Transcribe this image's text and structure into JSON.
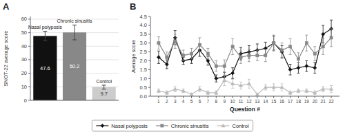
{
  "chart_data": [
    {
      "type": "bar",
      "title": "A",
      "categories": [
        "Nasal polyposis",
        "Chronic sinusitis",
        "Control"
      ],
      "values": [
        47.6,
        50.2,
        9.7
      ],
      "errors": [
        3.5,
        5.5,
        1.5
      ],
      "colors": [
        "#111111",
        "#888888",
        "#cccccc"
      ],
      "y_label": "SNOT-22 average score",
      "ylim": [
        0,
        62
      ],
      "yticks": [
        0,
        10,
        20,
        30,
        40,
        50,
        60
      ],
      "grid": true,
      "data_labels": true
    },
    {
      "type": "line",
      "title": "B",
      "x_label": "Question #",
      "y_label": "Average score",
      "x": [
        1,
        2,
        3,
        4,
        5,
        6,
        7,
        8,
        9,
        10,
        11,
        12,
        13,
        14,
        15,
        16,
        17,
        18,
        19,
        20,
        21,
        22
      ],
      "xlim": [
        0,
        23
      ],
      "xticks": [
        1,
        2,
        3,
        4,
        5,
        6,
        7,
        8,
        9,
        10,
        11,
        12,
        13,
        14,
        15,
        16,
        17,
        18,
        19,
        20,
        21,
        22
      ],
      "ylim": [
        0,
        4.5
      ],
      "yticks": [
        {
          "value": 0,
          "label": "0.0"
        },
        {
          "value": 0.5,
          "label": "0.5"
        },
        {
          "value": 1.0,
          "label": "1.0"
        },
        {
          "value": 1.5,
          "label": "1.5"
        },
        {
          "value": 2.0,
          "label": "2.0"
        },
        {
          "value": 2.5,
          "label": "2.5"
        },
        {
          "value": 3.0,
          "label": "3.0"
        },
        {
          "value": 3.5,
          "label": "3.5"
        },
        {
          "value": 4.0,
          "label": "4.0"
        },
        {
          "value": 4.5,
          "label": "4.5"
        }
      ],
      "grid": false,
      "legend": "bottom",
      "series": [
        {
          "name": "Nasal polyposis",
          "color": "#111111",
          "marker": "diamond",
          "values": [
            2.2,
            1.8,
            3.3,
            2.0,
            2.1,
            2.6,
            2.0,
            1.0,
            1.1,
            1.3,
            2.4,
            2.5,
            2.6,
            2.7,
            3.0,
            2.5,
            1.5,
            1.6,
            1.7,
            1.6,
            3.5,
            3.8
          ],
          "errors": [
            0.35,
            0.25,
            0.4,
            0.2,
            0.25,
            0.35,
            0.25,
            0.2,
            0.25,
            0.3,
            0.35,
            0.35,
            0.35,
            0.35,
            0.4,
            0.35,
            0.3,
            0.3,
            0.3,
            0.3,
            0.5,
            0.5
          ]
        },
        {
          "name": "Chronic sinusitis",
          "color": "#888888",
          "marker": "square",
          "values": [
            3.0,
            2.2,
            3.1,
            2.3,
            2.4,
            2.9,
            2.4,
            1.7,
            1.7,
            2.8,
            2.2,
            2.3,
            2.3,
            2.3,
            3.0,
            2.6,
            2.8,
            2.1,
            3.0,
            2.4,
            2.8,
            3.3
          ],
          "errors": [
            0.35,
            0.3,
            0.4,
            0.3,
            0.3,
            0.4,
            0.3,
            0.3,
            0.35,
            0.45,
            0.35,
            0.35,
            0.3,
            0.35,
            0.45,
            0.4,
            0.45,
            0.35,
            0.45,
            0.4,
            0.45,
            0.5
          ]
        },
        {
          "name": "Control",
          "color": "#bbbbbb",
          "marker": "triangle",
          "values": [
            0.3,
            0.2,
            0.4,
            0.3,
            0.1,
            0.4,
            0.2,
            0.2,
            0.9,
            0.7,
            0.6,
            0.7,
            0.1,
            0.5,
            0.5,
            0.5,
            0.2,
            0.3,
            0.3,
            0.2,
            0.4,
            0.4
          ],
          "errors": [
            0.1,
            0.1,
            0.15,
            0.1,
            0.07,
            0.15,
            0.1,
            0.1,
            0.3,
            0.25,
            0.2,
            0.25,
            0.05,
            0.15,
            0.2,
            0.2,
            0.1,
            0.1,
            0.1,
            0.1,
            0.15,
            0.2
          ]
        }
      ]
    }
  ]
}
